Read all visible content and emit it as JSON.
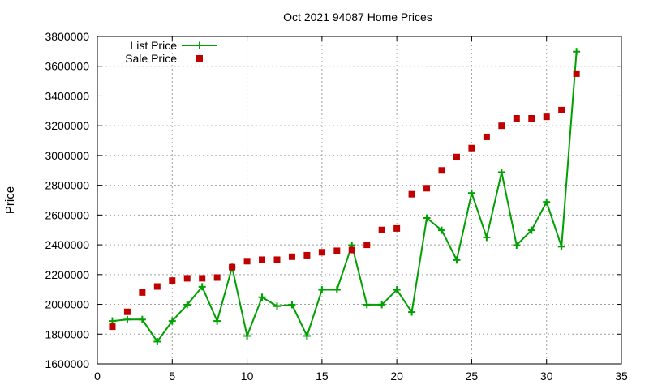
{
  "chart_data": {
    "type": "line",
    "title": "Oct 2021 94087 Home Prices",
    "xlabel": "",
    "ylabel": "Price",
    "xlim": [
      0,
      35
    ],
    "ylim": [
      1600000,
      3800000
    ],
    "xticks": [
      0,
      5,
      10,
      15,
      20,
      25,
      30,
      35
    ],
    "yticks": [
      1600000,
      1800000,
      2000000,
      2200000,
      2400000,
      2600000,
      2800000,
      3000000,
      3200000,
      3400000,
      3600000,
      3800000
    ],
    "grid": true,
    "legend_position": "top-left",
    "x": [
      1,
      2,
      3,
      4,
      5,
      6,
      7,
      8,
      9,
      10,
      11,
      12,
      13,
      14,
      15,
      16,
      17,
      18,
      19,
      20,
      21,
      22,
      23,
      24,
      25,
      26,
      27,
      28,
      29,
      30,
      31,
      32
    ],
    "series": [
      {
        "name": "List Price",
        "style": "line-plus",
        "color": "#00a000",
        "values": [
          1888000,
          1898000,
          1898000,
          1750000,
          1888000,
          1998000,
          2118000,
          1888000,
          2250000,
          1788000,
          2048000,
          1988000,
          1998000,
          1788000,
          2098000,
          2098000,
          2398000,
          1998000,
          1998000,
          2098000,
          1948000,
          2580000,
          2498000,
          2298000,
          2748000,
          2450000,
          2888000,
          2398000,
          2498000,
          2688000,
          2388000,
          3698000
        ]
      },
      {
        "name": "Sale Price",
        "style": "square",
        "color": "#c00000",
        "values": [
          1850000,
          1950000,
          2080000,
          2120000,
          2160000,
          2175000,
          2175000,
          2180000,
          2250000,
          2290000,
          2300000,
          2300000,
          2320000,
          2330000,
          2350000,
          2360000,
          2365000,
          2400000,
          2500000,
          2510000,
          2740000,
          2780000,
          2900000,
          2990000,
          3050000,
          3125000,
          3200000,
          3250000,
          3250000,
          3260000,
          3305000,
          3550000
        ]
      }
    ]
  }
}
